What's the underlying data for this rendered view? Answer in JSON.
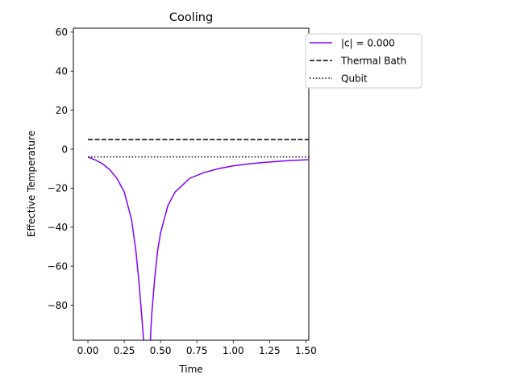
{
  "chart_data": {
    "type": "line",
    "title": "Cooling",
    "xlabel": "Time",
    "ylabel": "Effective Temperature",
    "xlim": [
      -0.1,
      1.52
    ],
    "ylim": [
      -98,
      62
    ],
    "xticks": [
      0.0,
      0.25,
      0.5,
      0.75,
      1.0,
      1.25,
      1.5
    ],
    "xtick_labels": [
      "0.00",
      "0.25",
      "0.50",
      "0.75",
      "1.00",
      "1.25",
      "1.50"
    ],
    "yticks": [
      -80,
      -60,
      -40,
      -20,
      0,
      20,
      40,
      60
    ],
    "ytick_labels": [
      "−80",
      "−60",
      "−40",
      "−20",
      "0",
      "20",
      "40",
      "60"
    ],
    "grid": false,
    "legend_position": "upper-right-outside",
    "series": [
      {
        "name": "|c| = 0.000",
        "style": "solid",
        "color": "#7f00ff",
        "x": [
          0.0,
          0.05,
          0.1,
          0.15,
          0.2,
          0.25,
          0.3,
          0.33,
          0.35,
          0.37,
          0.38,
          0.383,
          null,
          0.43,
          0.433,
          0.44,
          0.46,
          0.48,
          0.5,
          0.55,
          0.6,
          0.7,
          0.8,
          0.9,
          1.0,
          1.1,
          1.2,
          1.3,
          1.4,
          1.52
        ],
        "y": [
          -4,
          -5.5,
          -7.5,
          -10.5,
          -15,
          -22,
          -36,
          -52,
          -67,
          -85,
          -95,
          -98,
          null,
          -98,
          -93,
          -84,
          -66,
          -52,
          -43,
          -29,
          -22,
          -15,
          -12,
          -10,
          -8.6,
          -7.6,
          -6.9,
          -6.3,
          -5.8,
          -5.4
        ]
      },
      {
        "name": "Thermal Bath",
        "style": "dashed",
        "color": "#000000",
        "x": [
          0.0,
          1.52
        ],
        "y": [
          4.9,
          4.9
        ]
      },
      {
        "name": "Qubit",
        "style": "dotted",
        "color": "#000000",
        "x": [
          0.0,
          1.52
        ],
        "y": [
          -4,
          -4
        ]
      }
    ]
  }
}
